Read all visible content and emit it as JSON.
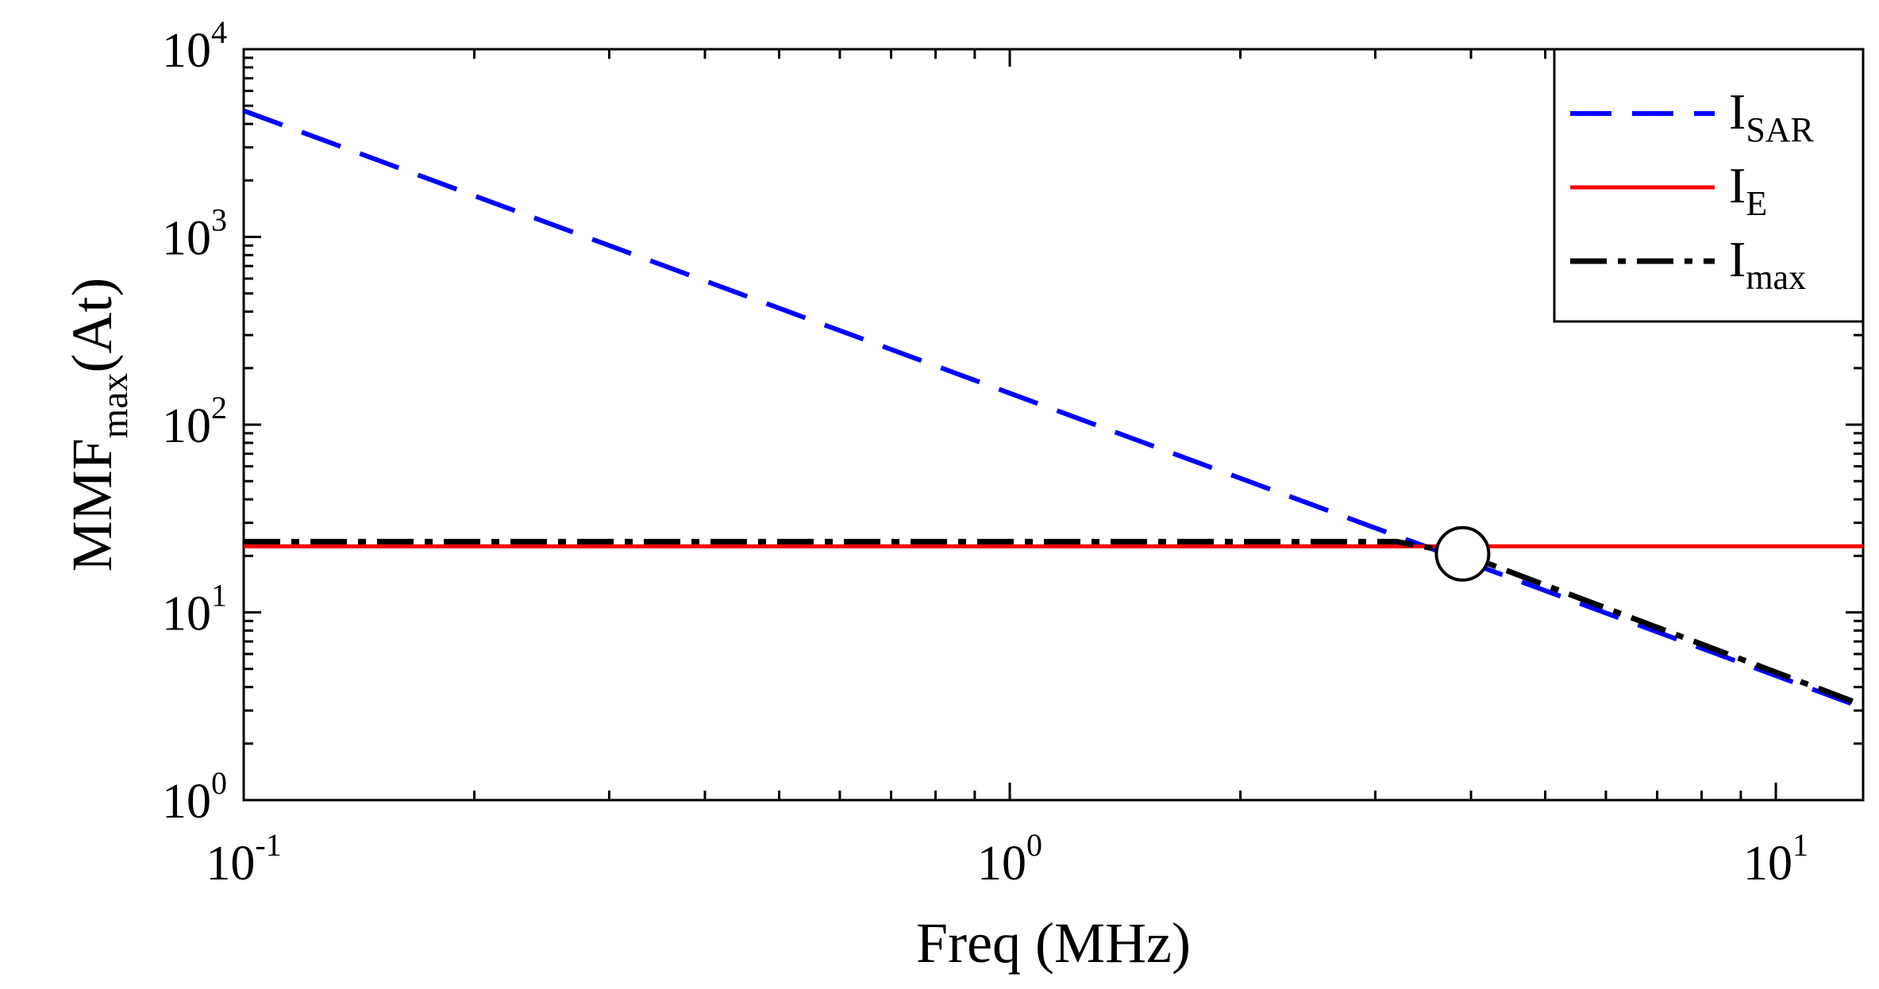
{
  "chart_data": {
    "type": "line",
    "x_scale": "log",
    "y_scale": "log",
    "xlim": [
      0.1,
      13
    ],
    "ylim": [
      1,
      10000
    ],
    "xlabel": "Freq (MHz)",
    "ylabel": {
      "main": "MMF",
      "sub": "max",
      "unit": "(At)"
    },
    "x_ticks": [
      {
        "base": "10",
        "exp": "-1",
        "value": 0.1
      },
      {
        "base": "10",
        "exp": "0",
        "value": 1
      },
      {
        "base": "10",
        "exp": "1",
        "value": 10
      }
    ],
    "y_ticks": [
      {
        "base": "10",
        "exp": "0",
        "value": 1
      },
      {
        "base": "10",
        "exp": "1",
        "value": 10
      },
      {
        "base": "10",
        "exp": "2",
        "value": 100
      },
      {
        "base": "10",
        "exp": "3",
        "value": 1000
      },
      {
        "base": "10",
        "exp": "4",
        "value": 10000
      }
    ],
    "grid": false,
    "legend_position": "top-right",
    "series": [
      {
        "name": "I",
        "name_sub": "SAR",
        "color": "#0000ff",
        "style": "dashed",
        "x": [
          0.1,
          13
        ],
        "y": [
          4700,
          3.1
        ]
      },
      {
        "name": "I",
        "name_sub": "E",
        "color": "#ff0000",
        "style": "solid",
        "x": [
          0.1,
          13
        ],
        "y": [
          22.5,
          22.5
        ]
      },
      {
        "name": "I",
        "name_sub": "max",
        "color": "#000000",
        "style": "dash-dot",
        "x": [
          0.1,
          3.2,
          3.9,
          13
        ],
        "y": [
          23.8,
          23.8,
          20.5,
          3.2
        ]
      }
    ],
    "annotations": [
      {
        "type": "circle-marker",
        "x": 3.9,
        "y": 20.5
      }
    ]
  }
}
